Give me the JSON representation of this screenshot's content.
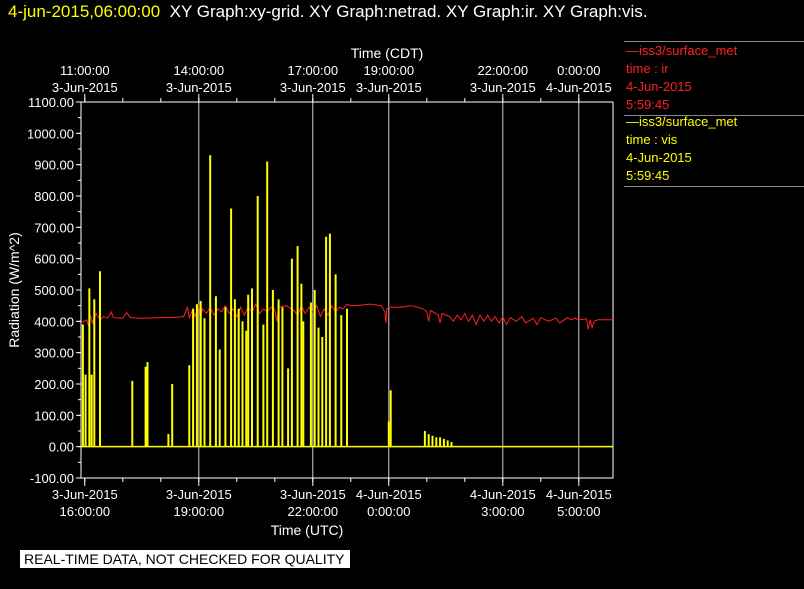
{
  "header": {
    "timestamp": "4-jun-2015,06:00:00",
    "graphs": "XY Graph:xy-grid.  XY Graph:netrad.  XY Graph:ir.  XY Graph:vis."
  },
  "legend": [
    {
      "station": "—iss3/surface_met",
      "var": "time : ir",
      "date": "4-Jun-2015",
      "time": "5:59:45",
      "color": "#ff2020"
    },
    {
      "station": "—iss3/surface_met",
      "var": "time : vis",
      "date": "4-Jun-2015",
      "time": "5:59:45",
      "color": "#ffff00"
    }
  ],
  "disclaimer": "REAL-TIME DATA, NOT CHECKED FOR QUALITY",
  "chart_data": {
    "type": "line",
    "title": "",
    "ylabel": "Radiation  (W/m^2)",
    "xlabel_bottom": "Time (UTC)",
    "xlabel_top": "Time (CDT)",
    "ylim": [
      -100,
      1100
    ],
    "yticks": [
      "-100.00",
      "0.00",
      "100.00",
      "200.00",
      "300.00",
      "400.00",
      "500.00",
      "600.00",
      "700.00",
      "800.00",
      "900.00",
      "1000.00",
      "1100.00"
    ],
    "xlim_hours_utc": [
      15.9,
      29.9
    ],
    "grid": true,
    "bottom_ticks": [
      {
        "hour": 16,
        "l1": "3-Jun-2015",
        "l2": "16:00:00"
      },
      {
        "hour": 19,
        "l1": "3-Jun-2015",
        "l2": "19:00:00"
      },
      {
        "hour": 22,
        "l1": "3-Jun-2015",
        "l2": "22:00:00"
      },
      {
        "hour": 24,
        "l1": "4-Jun-2015",
        "l2": "0:00:00"
      },
      {
        "hour": 27,
        "l1": "4-Jun-2015",
        "l2": "3:00:00"
      },
      {
        "hour": 29,
        "l1": "4-Jun-2015",
        "l2": "5:00:00"
      }
    ],
    "top_ticks": [
      {
        "hour": 16,
        "l1": "11:00:00",
        "l2": "3-Jun-2015"
      },
      {
        "hour": 19,
        "l1": "14:00:00",
        "l2": "3-Jun-2015"
      },
      {
        "hour": 22,
        "l1": "17:00:00",
        "l2": "3-Jun-2015"
      },
      {
        "hour": 24,
        "l1": "19:00:00",
        "l2": "3-Jun-2015"
      },
      {
        "hour": 27,
        "l1": "22:00:00",
        "l2": "3-Jun-2015"
      },
      {
        "hour": 29,
        "l1": "0:00:00",
        "l2": "4-Jun-2015"
      }
    ],
    "grid_hours": [
      19,
      22,
      24,
      27,
      29
    ],
    "series": [
      {
        "name": "ir",
        "color": "#ff2020",
        "points": [
          [
            15.9,
            395
          ],
          [
            16.05,
            405
          ],
          [
            16.1,
            385
          ],
          [
            16.15,
            420
          ],
          [
            16.2,
            395
          ],
          [
            16.3,
            425
          ],
          [
            16.4,
            405
          ],
          [
            16.5,
            415
          ],
          [
            16.6,
            410
          ],
          [
            16.7,
            430
          ],
          [
            16.75,
            412
          ],
          [
            17.0,
            410
          ],
          [
            17.1,
            428
          ],
          [
            17.2,
            412
          ],
          [
            17.5,
            410
          ],
          [
            18.0,
            412
          ],
          [
            18.3,
            412
          ],
          [
            18.6,
            415
          ],
          [
            18.7,
            445
          ],
          [
            18.75,
            412
          ],
          [
            18.85,
            440
          ],
          [
            18.9,
            415
          ],
          [
            19.0,
            450
          ],
          [
            19.05,
            415
          ],
          [
            19.1,
            440
          ],
          [
            19.2,
            425
          ],
          [
            19.3,
            445
          ],
          [
            19.4,
            420
          ],
          [
            19.5,
            440
          ],
          [
            19.6,
            430
          ],
          [
            19.7,
            450
          ],
          [
            19.8,
            425
          ],
          [
            19.9,
            440
          ],
          [
            20.0,
            415
          ],
          [
            20.1,
            445
          ],
          [
            20.2,
            420
          ],
          [
            20.3,
            445
          ],
          [
            20.4,
            430
          ],
          [
            20.5,
            455
          ],
          [
            20.6,
            425
          ],
          [
            20.7,
            440
          ],
          [
            20.8,
            430
          ],
          [
            20.9,
            445
          ],
          [
            21.0,
            438
          ],
          [
            21.05,
            400
          ],
          [
            21.1,
            445
          ],
          [
            21.3,
            450
          ],
          [
            21.5,
            435
          ],
          [
            21.6,
            420
          ],
          [
            21.7,
            450
          ],
          [
            21.8,
            425
          ],
          [
            21.9,
            445
          ],
          [
            22.0,
            430
          ],
          [
            22.1,
            450
          ],
          [
            22.2,
            415
          ],
          [
            22.3,
            440
          ],
          [
            22.4,
            420
          ],
          [
            22.5,
            450
          ],
          [
            22.6,
            430
          ],
          [
            22.7,
            445
          ],
          [
            22.8,
            440
          ],
          [
            22.9,
            455
          ],
          [
            23.0,
            450
          ],
          [
            23.3,
            452
          ],
          [
            23.5,
            455
          ],
          [
            23.8,
            450
          ],
          [
            23.9,
            430
          ],
          [
            23.92,
            395
          ],
          [
            23.95,
            440
          ],
          [
            24.0,
            445
          ],
          [
            24.3,
            445
          ],
          [
            24.6,
            450
          ],
          [
            24.9,
            440
          ],
          [
            25.0,
            430
          ],
          [
            25.05,
            400
          ],
          [
            25.1,
            435
          ],
          [
            25.3,
            420
          ],
          [
            25.35,
            395
          ],
          [
            25.4,
            425
          ],
          [
            25.6,
            415
          ],
          [
            25.7,
            400
          ],
          [
            25.8,
            420
          ],
          [
            25.9,
            405
          ],
          [
            26.0,
            425
          ],
          [
            26.1,
            400
          ],
          [
            26.2,
            420
          ],
          [
            26.3,
            390
          ],
          [
            26.4,
            420
          ],
          [
            26.5,
            400
          ],
          [
            26.6,
            420
          ],
          [
            26.7,
            400
          ],
          [
            26.8,
            415
          ],
          [
            26.9,
            395
          ],
          [
            27.0,
            415
          ],
          [
            27.1,
            390
          ],
          [
            27.2,
            412
          ],
          [
            27.35,
            400
          ],
          [
            27.5,
            415
          ],
          [
            27.6,
            395
          ],
          [
            27.8,
            410
          ],
          [
            27.9,
            390
          ],
          [
            28.0,
            412
          ],
          [
            28.2,
            400
          ],
          [
            28.4,
            410
          ],
          [
            28.5,
            395
          ],
          [
            28.7,
            412
          ],
          [
            28.8,
            405
          ],
          [
            28.9,
            410
          ],
          [
            29.0,
            405
          ],
          [
            29.2,
            408
          ],
          [
            29.25,
            375
          ],
          [
            29.3,
            405
          ],
          [
            29.35,
            380
          ],
          [
            29.4,
            400
          ],
          [
            29.5,
            405
          ],
          [
            29.7,
            405
          ],
          [
            29.9,
            405
          ]
        ]
      },
      {
        "name": "vis",
        "color": "#ffff00",
        "base": 0,
        "baseline_x": [
          15.9,
          29.9
        ],
        "spikes": [
          [
            15.95,
            390
          ],
          [
            16.02,
            230
          ],
          [
            16.12,
            505
          ],
          [
            16.18,
            230
          ],
          [
            16.25,
            470
          ],
          [
            16.4,
            560
          ],
          [
            17.25,
            210
          ],
          [
            17.6,
            255
          ],
          [
            17.65,
            270
          ],
          [
            18.2,
            40
          ],
          [
            18.3,
            200
          ],
          [
            18.75,
            260
          ],
          [
            18.85,
            440
          ],
          [
            18.95,
            455
          ],
          [
            19.05,
            465
          ],
          [
            19.15,
            410
          ],
          [
            19.3,
            930
          ],
          [
            19.45,
            480
          ],
          [
            19.55,
            310
          ],
          [
            19.7,
            445
          ],
          [
            19.85,
            760
          ],
          [
            19.95,
            470
          ],
          [
            20.05,
            440
          ],
          [
            20.15,
            400
          ],
          [
            20.25,
            370
          ],
          [
            20.3,
            485
          ],
          [
            20.4,
            505
          ],
          [
            20.55,
            800
          ],
          [
            20.7,
            390
          ],
          [
            20.8,
            910
          ],
          [
            20.95,
            500
          ],
          [
            21.1,
            470
          ],
          [
            21.2,
            445
          ],
          [
            21.35,
            250
          ],
          [
            21.45,
            600
          ],
          [
            21.6,
            640
          ],
          [
            21.7,
            520
          ],
          [
            21.75,
            400
          ],
          [
            21.95,
            460
          ],
          [
            22.05,
            500
          ],
          [
            22.15,
            380
          ],
          [
            22.25,
            350
          ],
          [
            22.35,
            670
          ],
          [
            22.45,
            680
          ],
          [
            22.6,
            550
          ],
          [
            22.75,
            420
          ],
          [
            22.9,
            440
          ],
          [
            24.05,
            180
          ],
          [
            24.0,
            80
          ],
          [
            24.95,
            50
          ],
          [
            25.05,
            40
          ],
          [
            25.15,
            35
          ],
          [
            25.25,
            30
          ],
          [
            25.35,
            30
          ],
          [
            25.45,
            25
          ],
          [
            25.55,
            20
          ],
          [
            25.65,
            15
          ]
        ]
      }
    ]
  }
}
